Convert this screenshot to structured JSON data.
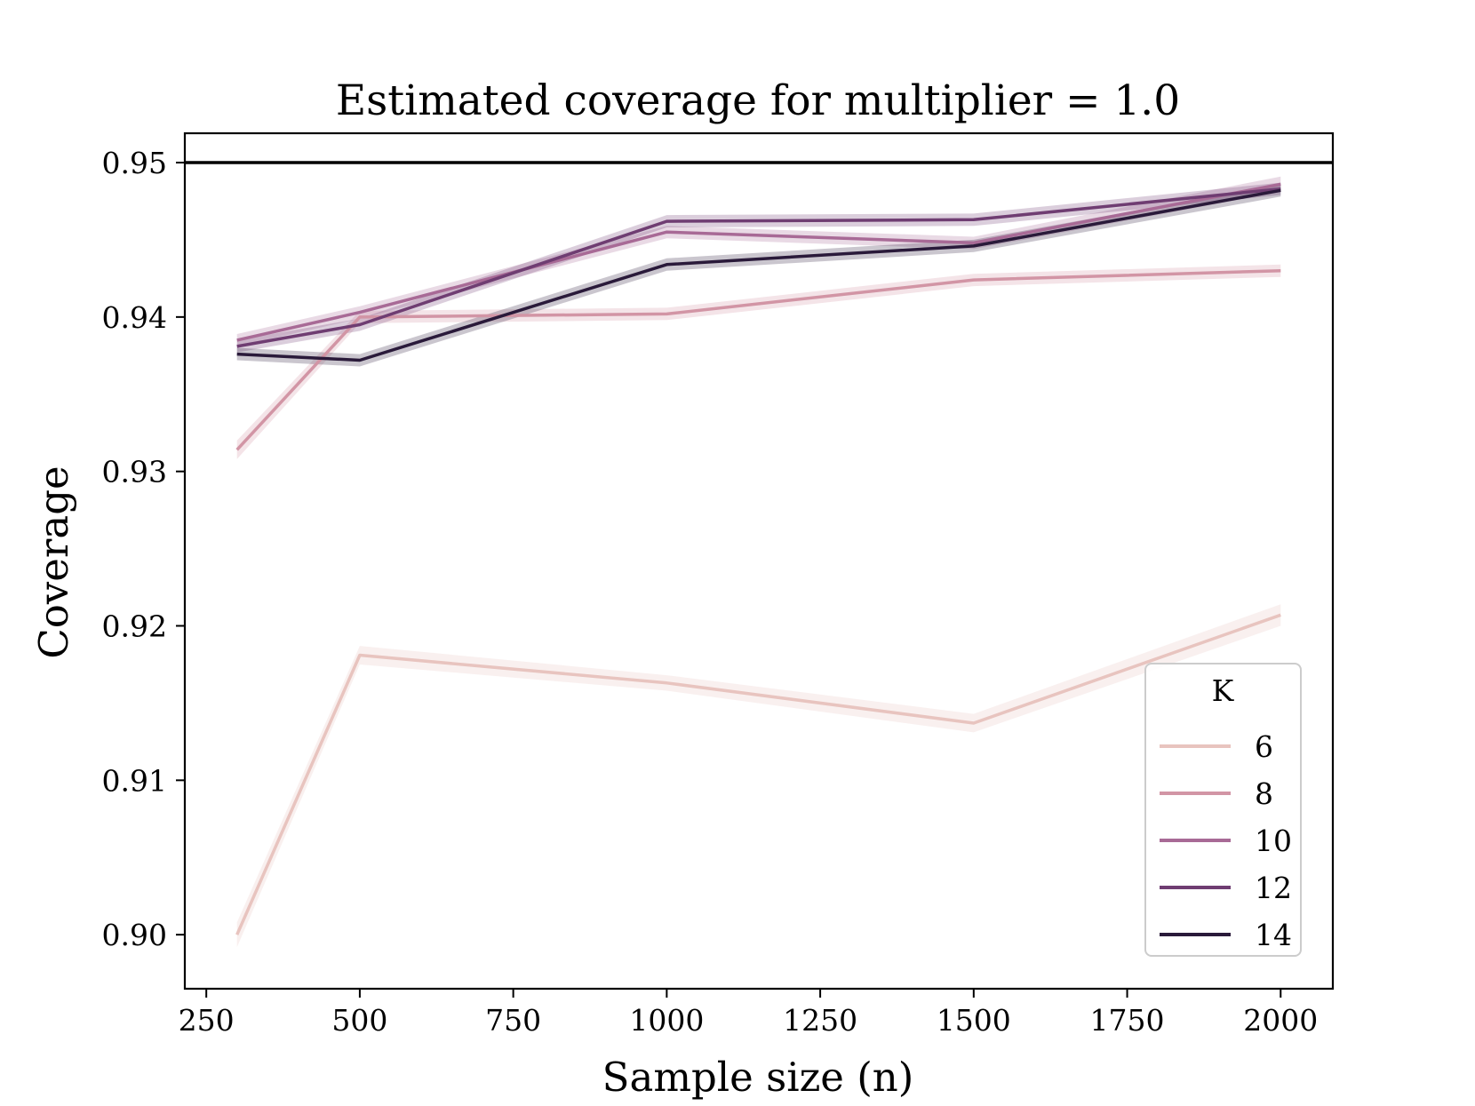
{
  "chart_data": {
    "type": "line",
    "title": "Estimated coverage for multiplier = 1.0",
    "xlabel": "Sample size (n)",
    "ylabel": "Coverage",
    "xlim": [
      215,
      2085
    ],
    "ylim": [
      0.8965,
      0.9519
    ],
    "xticks": [
      250,
      500,
      750,
      1000,
      1250,
      1500,
      1750,
      2000
    ],
    "xtick_labels": [
      "250",
      "500",
      "750",
      "1000",
      "1250",
      "1500",
      "1750",
      "2000"
    ],
    "yticks": [
      0.9,
      0.91,
      0.92,
      0.93,
      0.94,
      0.95
    ],
    "ytick_labels": [
      "0.90",
      "0.91",
      "0.92",
      "0.93",
      "0.94",
      "0.95"
    ],
    "reference_line": {
      "y": 0.95,
      "color": "#000000"
    },
    "x": [
      300,
      500,
      1000,
      1500,
      2000
    ],
    "series": [
      {
        "name": "6",
        "color": "#e8c4bf",
        "values": [
          0.9,
          0.9181,
          0.9163,
          0.9137,
          0.9207
        ],
        "ci_halfwidth": [
          0.0008,
          0.0006,
          0.0005,
          0.0006,
          0.0007
        ]
      },
      {
        "name": "8",
        "color": "#d295a5",
        "values": [
          0.9314,
          0.94,
          0.9402,
          0.9424,
          0.943
        ],
        "ci_halfwidth": [
          0.0006,
          0.0004,
          0.0004,
          0.0004,
          0.0004
        ]
      },
      {
        "name": "10",
        "color": "#a86a96",
        "values": [
          0.9385,
          0.9403,
          0.9455,
          0.9448,
          0.9486
        ],
        "ci_halfwidth": [
          0.0004,
          0.0004,
          0.0004,
          0.0004,
          0.0005
        ]
      },
      {
        "name": "12",
        "color": "#6f3d72",
        "values": [
          0.9381,
          0.9395,
          0.9462,
          0.9463,
          0.9483
        ],
        "ci_halfwidth": [
          0.0004,
          0.0004,
          0.0004,
          0.0004,
          0.0004
        ]
      },
      {
        "name": "14",
        "color": "#2a1a3a",
        "values": [
          0.9376,
          0.9372,
          0.9434,
          0.9446,
          0.9482
        ],
        "ci_halfwidth": [
          0.0004,
          0.0004,
          0.0004,
          0.0004,
          0.0004
        ]
      }
    ],
    "legend": {
      "title": "K",
      "position": "lower-right"
    },
    "grid": false
  }
}
